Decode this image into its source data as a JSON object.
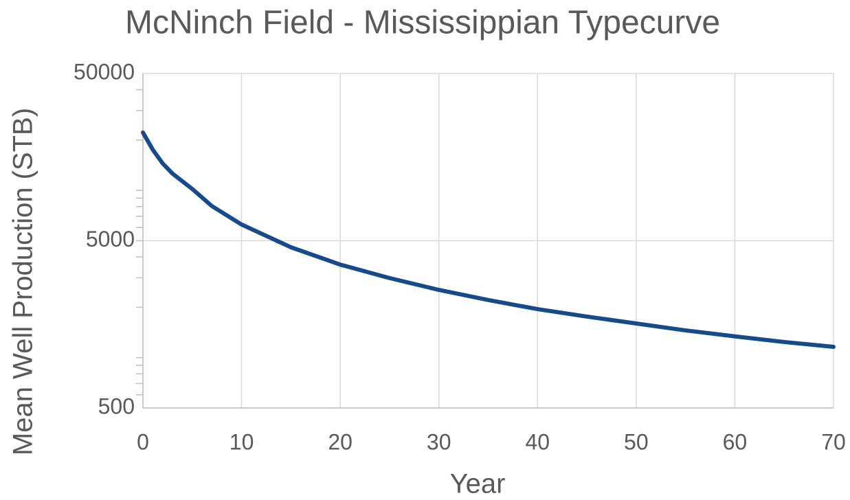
{
  "chart_data": {
    "type": "line",
    "title": "McNinch Field - Mississippian Typecurve",
    "x_label": "Year",
    "y_label": "Mean Well Production (STB)",
    "x": [
      0,
      1,
      2,
      3,
      5,
      7,
      10,
      15,
      20,
      25,
      30,
      35,
      40,
      45,
      50,
      55,
      60,
      65,
      70
    ],
    "series": [
      {
        "name": "Mean Well Production",
        "color": "#154a8c",
        "values": [
          22200,
          17500,
          14500,
          12600,
          10200,
          8050,
          6250,
          4570,
          3600,
          2990,
          2540,
          2210,
          1950,
          1760,
          1600,
          1455,
          1340,
          1240,
          1160
        ]
      }
    ],
    "xlim": [
      0,
      70
    ],
    "xticks": [
      0,
      10,
      20,
      30,
      40,
      50,
      60,
      70
    ],
    "ylim": [
      500,
      50000
    ],
    "yticks": [
      500,
      5000,
      50000
    ],
    "log_y": true,
    "grid": true,
    "minor_ticks": true
  }
}
